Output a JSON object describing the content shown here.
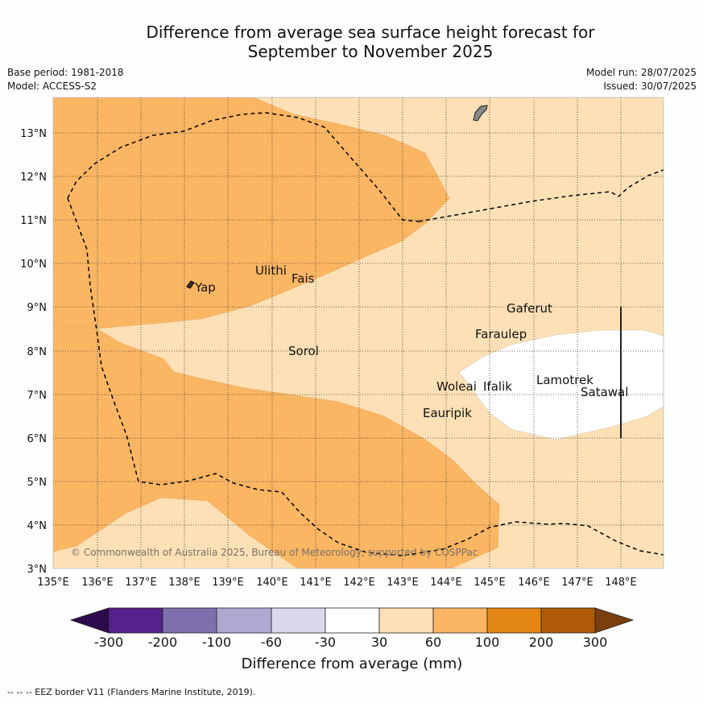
{
  "title_line1": "Difference from average sea surface height forecast for",
  "title_line2": "September to November 2025",
  "meta": {
    "base_period": "Base period: 1981-2018",
    "model": "Model: ACCESS-S2",
    "model_run": "Model run: 28/07/2025",
    "issued": "Issued: 30/07/2025"
  },
  "credit": "© Commonwealth of Australia 2025, Bureau of Meteorology, supported by COSPPac",
  "footer": "--  --  -- EEZ border V11 (Flanders Marine Institute, 2019).",
  "x_ticks": [
    "135°E",
    "136°E",
    "137°E",
    "138°E",
    "139°E",
    "140°E",
    "141°E",
    "142°E",
    "143°E",
    "144°E",
    "145°E",
    "146°E",
    "147°E",
    "148°E"
  ],
  "y_ticks": [
    "13°N",
    "12°N",
    "11°N",
    "10°N",
    "9°N",
    "8°N",
    "7°N",
    "6°N",
    "5°N",
    "4°N",
    "3°N"
  ],
  "places": [
    "Ulithi",
    "Fais",
    "Yap",
    "Gaferut",
    "Faraulep",
    "Sorol",
    "Lamotrek",
    "Woleai",
    "Ifalik",
    "Satawal",
    "Eauripik"
  ],
  "colorbar": {
    "title": "Difference from average (mm)",
    "labels": [
      "-300",
      "-200",
      "-100",
      "-60",
      "-30",
      "30",
      "60",
      "100",
      "200",
      "300"
    ],
    "colors": [
      "#2d0a4e",
      "#54228a",
      "#7f70ad",
      "#b0a8d1",
      "#d9d9eb",
      "#ffffff",
      "#fde0b5",
      "#fbb663",
      "#e38615",
      "#b05b07",
      "#7a3f0d"
    ]
  },
  "colors": {
    "light_orange": "#fde0b5",
    "mid_orange": "#fbb663",
    "white": "#ffffff"
  }
}
